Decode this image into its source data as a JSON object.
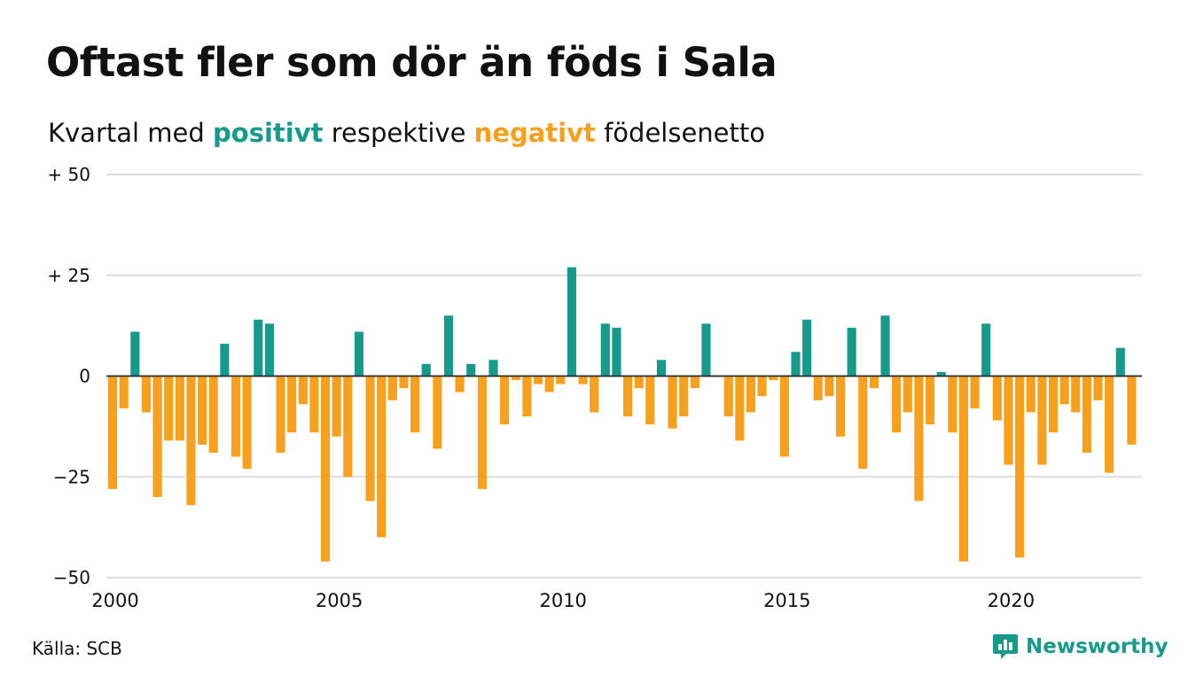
{
  "title": "Oftast fler som dör än föds i Sala",
  "subtitle": {
    "before": "Kvartal med",
    "positive": "positivt",
    "middle": "respektive",
    "negative": "negativt",
    "after": "födelsenetto"
  },
  "source": "Källa: SCB",
  "brand": {
    "name": "Newsworthy",
    "icon": "newsworthy-logo-icon"
  },
  "colors": {
    "positive": "#159a8c",
    "negative": "#f6a01d",
    "grid": "#dddddd",
    "text": "#111111"
  },
  "chart_data": {
    "type": "bar",
    "ylim": [
      -50,
      50
    ],
    "yticks": [
      {
        "value": 50,
        "label": "+ 50"
      },
      {
        "value": 25,
        "label": "+ 25"
      },
      {
        "value": 0,
        "label": "0"
      },
      {
        "value": -25,
        "label": "−25"
      },
      {
        "value": -50,
        "label": "−50"
      }
    ],
    "xticks": [
      "2000",
      "2005",
      "2010",
      "2015",
      "2020"
    ],
    "start_year": 2000,
    "grid": true,
    "values": [
      -28,
      -8,
      11,
      -9,
      -30,
      -16,
      -16,
      -32,
      -17,
      -19,
      8,
      -20,
      -23,
      14,
      13,
      -19,
      -14,
      -7,
      -14,
      -46,
      -15,
      -25,
      11,
      -31,
      -40,
      -6,
      -3,
      -14,
      3,
      -18,
      15,
      -4,
      3,
      -28,
      4,
      -12,
      -1,
      -10,
      -2,
      -4,
      -2,
      27,
      -2,
      -9,
      13,
      12,
      -10,
      -3,
      -12,
      4,
      -13,
      -10,
      -3,
      13,
      0,
      -10,
      -16,
      -9,
      -5,
      -1,
      -20,
      6,
      14,
      -6,
      -5,
      -15,
      12,
      -23,
      -3,
      15,
      -14,
      -9,
      -31,
      -12,
      1,
      -14,
      -46,
      -8,
      13,
      -11,
      -22,
      -45,
      -9,
      -22,
      -14,
      -7,
      -9,
      -19,
      -6,
      -24,
      7,
      -17
    ]
  }
}
